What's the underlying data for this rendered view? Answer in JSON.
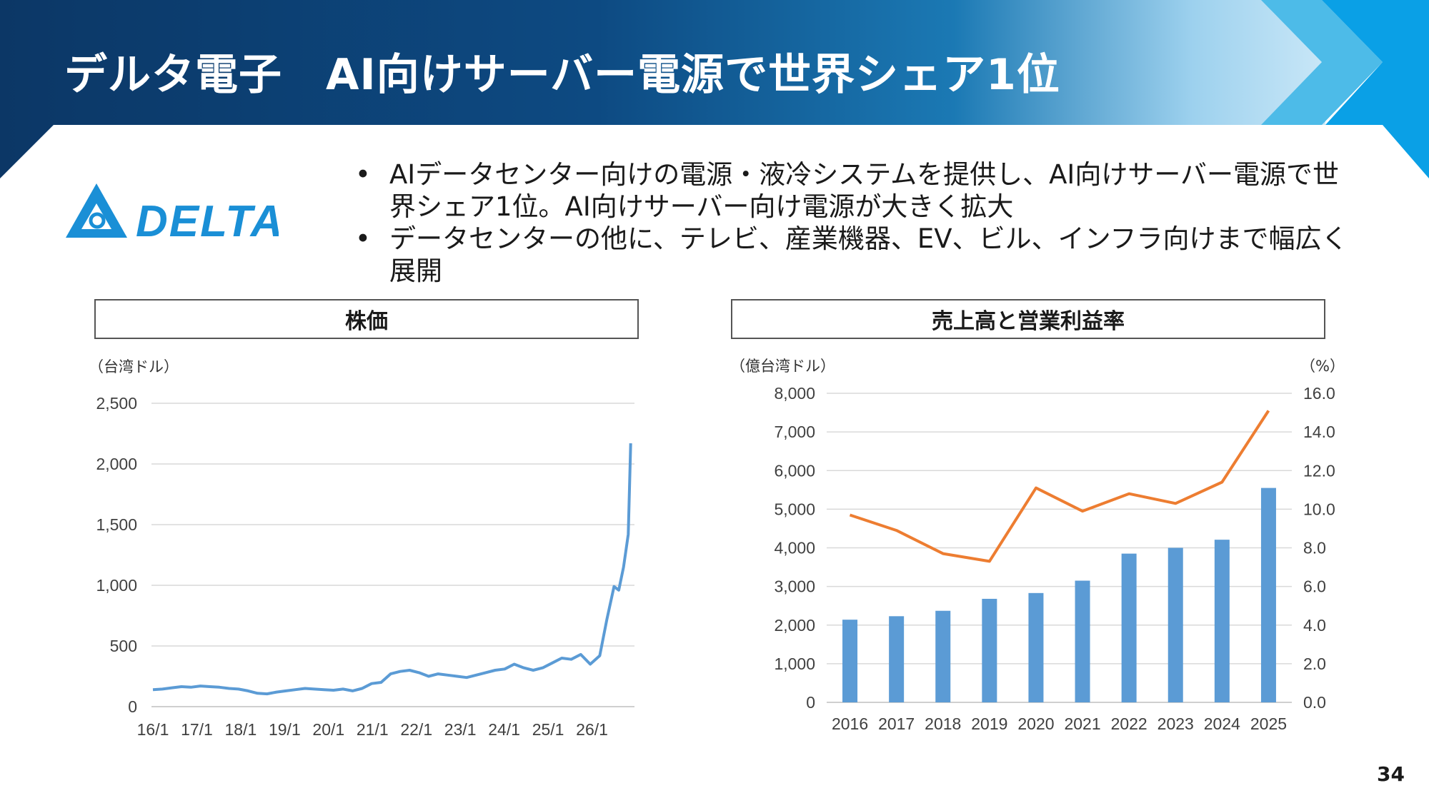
{
  "slide": {
    "title": "デルタ電子　AI向けサーバー電源で世界シェア1位",
    "logo_text": "DELTA",
    "bullets": [
      "AIデータセンター向けの電源・液冷システムを提供し、AI向けサーバー電源で世界シェア1位。AI向けサーバー向け電源が大きく拡大",
      "データセンターの他に、テレビ、産業機器、EV、ビル、インフラ向けまで幅広く展開"
    ],
    "bullet_symbol": "•",
    "page_number": "34",
    "colors": {
      "header_dark": "#0d3a6b",
      "header_light": "#29a8e0",
      "bar": "#5b9bd5",
      "line_orange": "#ed7d31",
      "line_blue": "#5b9bd5",
      "logo_blue": "#1a8fd6"
    }
  },
  "chart_data": [
    {
      "type": "line",
      "title": "株価",
      "unit_left": "（台湾ドル）",
      "x_ticks": [
        "16/1",
        "17/1",
        "18/1",
        "19/1",
        "20/1",
        "21/1",
        "22/1",
        "23/1",
        "24/1",
        "25/1",
        "26/1"
      ],
      "y_ticks": [
        "0",
        "500",
        "1,000",
        "1,500",
        "2,000",
        "2,500"
      ],
      "ylim": [
        0,
        2500
      ],
      "x_range": [
        2016.0,
        2026.1
      ],
      "grid": true,
      "series": [
        {
          "x": [
            2016.0,
            2016.2,
            2016.4,
            2016.6,
            2016.8,
            2017.0,
            2017.2,
            2017.4,
            2017.6,
            2017.8,
            2018.0,
            2018.2,
            2018.4,
            2018.6,
            2018.8,
            2019.0,
            2019.2,
            2019.4,
            2019.6,
            2019.8,
            2020.0,
            2020.2,
            2020.4,
            2020.6,
            2020.8,
            2021.0,
            2021.2,
            2021.4,
            2021.6,
            2021.8,
            2022.0,
            2022.2,
            2022.4,
            2022.6,
            2022.8,
            2023.0,
            2023.2,
            2023.4,
            2023.6,
            2023.8,
            2024.0,
            2024.2,
            2024.4,
            2024.6,
            2024.8,
            2025.0,
            2025.2,
            2025.4,
            2025.55,
            2025.7,
            2025.8,
            2025.9,
            2026.0,
            2026.05
          ],
          "values": [
            140,
            145,
            155,
            165,
            160,
            170,
            165,
            160,
            150,
            145,
            130,
            110,
            105,
            120,
            130,
            140,
            150,
            145,
            140,
            135,
            145,
            130,
            150,
            190,
            200,
            270,
            290,
            300,
            280,
            250,
            270,
            260,
            250,
            240,
            260,
            280,
            300,
            310,
            350,
            320,
            300,
            320,
            360,
            400,
            390,
            430,
            350,
            420,
            720,
            990,
            960,
            1150,
            1420,
            2170
          ]
        }
      ]
    },
    {
      "type": "bar",
      "title": "売上高と営業利益率",
      "unit_left": "（億台湾ドル）",
      "unit_right": "（%）",
      "categories": [
        "2016",
        "2017",
        "2018",
        "2019",
        "2020",
        "2021",
        "2022",
        "2023",
        "2024",
        "2025"
      ],
      "y_ticks_left": [
        "0",
        "1,000",
        "2,000",
        "3,000",
        "4,000",
        "5,000",
        "6,000",
        "7,000",
        "8,000"
      ],
      "y_ticks_right": [
        "0.0",
        "2.0",
        "4.0",
        "6.0",
        "8.0",
        "10.0",
        "12.0",
        "14.0",
        "16.0"
      ],
      "ylim_left": [
        0,
        8000
      ],
      "ylim_right": [
        0,
        16
      ],
      "grid": true,
      "series": [
        {
          "type": "bar",
          "axis": "left",
          "values": [
            2140,
            2230,
            2370,
            2680,
            2830,
            3150,
            3850,
            4000,
            4210,
            5550
          ]
        },
        {
          "type": "line",
          "axis": "right",
          "values": [
            9.7,
            8.9,
            7.7,
            7.3,
            11.1,
            9.9,
            10.8,
            10.3,
            11.4,
            15.1
          ]
        }
      ]
    }
  ]
}
